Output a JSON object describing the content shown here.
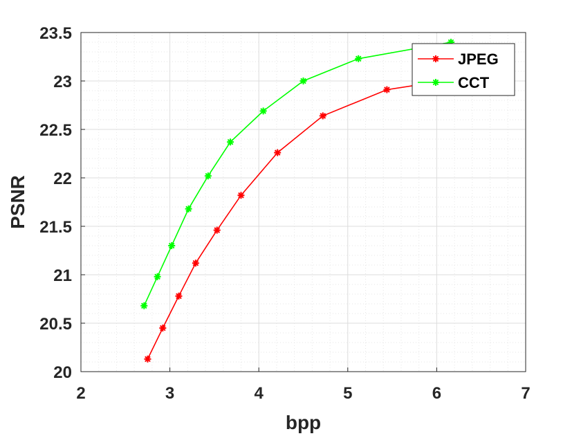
{
  "chart_data": {
    "type": "line",
    "xlabel": "bpp",
    "ylabel": "PSNR",
    "xlim": [
      2,
      7
    ],
    "ylim": [
      20,
      23.5
    ],
    "xticks": [
      "2",
      "3",
      "4",
      "5",
      "6",
      "7"
    ],
    "yticks": [
      "20",
      "20.5",
      "21",
      "21.5",
      "22",
      "22.5",
      "23",
      "23.5"
    ],
    "grid": true,
    "minor_grid": true,
    "legend_position": "top-right",
    "series": [
      {
        "name": "JPEG",
        "color": "#ff0000",
        "marker": "asterisk",
        "x": [
          2.75,
          2.92,
          3.1,
          3.29,
          3.53,
          3.8,
          4.21,
          4.72,
          5.44,
          6.15
        ],
        "y": [
          20.13,
          20.45,
          20.78,
          21.12,
          21.46,
          21.82,
          22.26,
          22.64,
          22.91,
          23.01
        ]
      },
      {
        "name": "CCT",
        "color": "#00ff00",
        "marker": "asterisk",
        "x": [
          2.71,
          2.86,
          3.02,
          3.21,
          3.43,
          3.68,
          4.05,
          4.5,
          5.12,
          6.16
        ],
        "y": [
          20.68,
          20.98,
          21.3,
          21.68,
          22.02,
          22.37,
          22.69,
          23.0,
          23.23,
          23.4
        ]
      }
    ]
  }
}
